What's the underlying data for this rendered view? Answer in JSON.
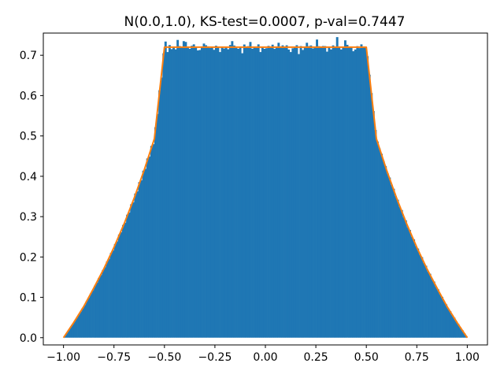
{
  "chart_data": {
    "type": "bar",
    "title": "N(0.0,1.0), KS-test=0.0007, p-val=0.7447",
    "xlabel": "",
    "ylabel": "",
    "xlim": [
      -1.1,
      1.1
    ],
    "ylim": [
      -0.018,
      0.755
    ],
    "x_ticks": [
      -1.0,
      -0.75,
      -0.5,
      -0.25,
      0.0,
      0.25,
      0.5,
      0.75,
      1.0
    ],
    "x_tick_labels": [
      "−1.00",
      "−0.75",
      "−0.50",
      "−0.25",
      "0.00",
      "0.25",
      "0.50",
      "0.75",
      "1.00"
    ],
    "y_ticks": [
      0.0,
      0.1,
      0.2,
      0.3,
      0.4,
      0.5,
      0.6,
      0.7
    ],
    "y_tick_labels": [
      "0.0",
      "0.1",
      "0.2",
      "0.3",
      "0.4",
      "0.5",
      "0.6",
      "0.7"
    ],
    "grid": false,
    "legend": "none",
    "series": [
      {
        "kind": "histogram",
        "color": "#1f77b4",
        "range": [
          -1.0,
          1.0
        ],
        "bins": 200,
        "plateau_level": 0.72,
        "spike_bins": [
          [
            -0.435,
            0.738
          ],
          [
            -0.405,
            0.735
          ],
          [
            -0.395,
            0.733
          ],
          [
            -0.355,
            0.727
          ],
          [
            -0.305,
            0.729
          ],
          [
            -0.165,
            0.735
          ],
          [
            -0.075,
            0.733
          ],
          [
            0.065,
            0.731
          ],
          [
            0.205,
            0.731
          ],
          [
            0.255,
            0.739
          ],
          [
            0.355,
            0.745
          ],
          [
            0.395,
            0.737
          ],
          [
            -0.495,
            0.734
          ],
          [
            0.475,
            0.727
          ]
        ],
        "dip_bins": [
          [
            -0.485,
            0.708
          ],
          [
            -0.335,
            0.712
          ],
          [
            -0.225,
            0.708
          ],
          [
            -0.115,
            0.705
          ],
          [
            -0.025,
            0.708
          ],
          [
            0.125,
            0.708
          ],
          [
            0.165,
            0.703
          ],
          [
            0.305,
            0.709
          ],
          [
            0.435,
            0.71
          ]
        ]
      },
      {
        "kind": "line",
        "color": "#ff7f0e",
        "x": [
          -1.0,
          -0.95,
          -0.9,
          -0.85,
          -0.8,
          -0.75,
          -0.7,
          -0.65,
          -0.6,
          -0.55,
          -0.5,
          -0.45,
          -0.4,
          -0.35,
          -0.3,
          -0.25,
          -0.2,
          -0.15,
          -0.1,
          -0.05,
          0.0,
          0.05,
          0.1,
          0.15,
          0.2,
          0.25,
          0.3,
          0.35,
          0.4,
          0.45,
          0.5,
          0.55,
          0.6,
          0.65,
          0.7,
          0.75,
          0.8,
          0.85,
          0.9,
          0.95,
          1.0
        ],
        "y": [
          0.0,
          0.037,
          0.077,
          0.123,
          0.171,
          0.224,
          0.282,
          0.346,
          0.416,
          0.493,
          0.72,
          0.72,
          0.72,
          0.72,
          0.72,
          0.72,
          0.72,
          0.72,
          0.72,
          0.72,
          0.72,
          0.72,
          0.72,
          0.72,
          0.72,
          0.72,
          0.72,
          0.72,
          0.72,
          0.72,
          0.72,
          0.493,
          0.416,
          0.346,
          0.282,
          0.224,
          0.171,
          0.123,
          0.077,
          0.037,
          0.0
        ]
      }
    ]
  }
}
